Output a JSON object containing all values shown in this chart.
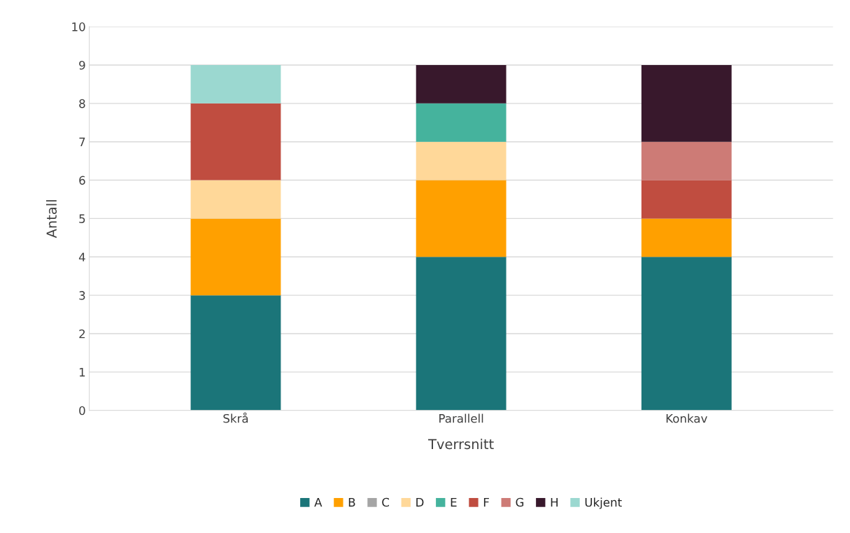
{
  "chart_data": {
    "type": "bar",
    "stacked": true,
    "xlabel": "Tverrsnitt",
    "ylabel": "Antall",
    "categories": [
      "Skrå",
      "Parallell",
      "Konkav"
    ],
    "series": [
      {
        "name": "A",
        "color": "#1b7579",
        "values": [
          3,
          4,
          4
        ]
      },
      {
        "name": "B",
        "color": "#ffa000",
        "values": [
          2,
          2,
          1
        ]
      },
      {
        "name": "C",
        "color": "#a5a5a5",
        "values": [
          0,
          0,
          0
        ]
      },
      {
        "name": "D",
        "color": "#ffd899",
        "values": [
          1,
          1,
          0
        ]
      },
      {
        "name": "E",
        "color": "#45b39d",
        "values": [
          0,
          1,
          0
        ]
      },
      {
        "name": "F",
        "color": "#c04d40",
        "values": [
          2,
          0,
          1
        ]
      },
      {
        "name": "G",
        "color": "#cd7b76",
        "values": [
          0,
          0,
          1
        ]
      },
      {
        "name": "H",
        "color": "#38182c",
        "values": [
          0,
          1,
          2
        ]
      },
      {
        "name": "Ukjent",
        "color": "#9bd8d0",
        "values": [
          1,
          0,
          0
        ]
      }
    ],
    "ylim": [
      0,
      10
    ],
    "yticks": [
      0,
      1,
      2,
      3,
      4,
      5,
      6,
      7,
      8,
      9,
      10
    ],
    "grid": "y",
    "legend": "bottom"
  }
}
